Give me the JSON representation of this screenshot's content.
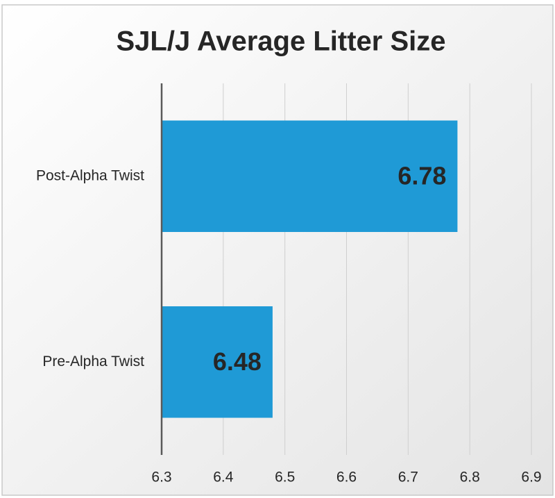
{
  "chart_data": {
    "type": "bar",
    "orientation": "horizontal",
    "title": "SJL/J Average Litter Size",
    "categories": [
      "Post-Alpha Twist",
      "Pre-Alpha Twist"
    ],
    "values": [
      6.78,
      6.48
    ],
    "color": "#1f9ad6",
    "xlim": [
      6.3,
      6.9
    ],
    "xticks": [
      6.3,
      6.4,
      6.5,
      6.6,
      6.7,
      6.8,
      6.9
    ],
    "grid": true
  }
}
